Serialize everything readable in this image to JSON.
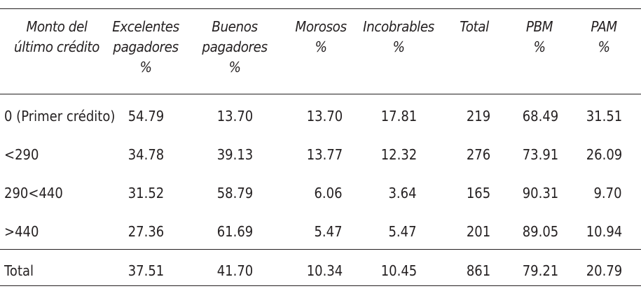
{
  "table": {
    "headers": [
      "Monto del\núltimo crédito",
      "Excelentes\npagadores\n%",
      "Buenos\npagadores\n%",
      "Morosos\n%",
      "Incobrables\n%",
      "Total",
      "PBM\n%",
      "PAM\n%"
    ],
    "rows": [
      {
        "label": "0 (Primer crédito)",
        "values": [
          "54.79",
          "13.70",
          "13.70",
          "17.81",
          "219",
          "68.49",
          "31.51"
        ]
      },
      {
        "label": "<290",
        "values": [
          "34.78",
          "39.13",
          "13.77",
          "12.32",
          "276",
          "73.91",
          "26.09"
        ]
      },
      {
        "label": "290<440",
        "values": [
          "31.52",
          "58.79",
          "6.06",
          "3.64",
          "165",
          "90.31",
          "9.70"
        ]
      },
      {
        "label": ">440",
        "values": [
          "27.36",
          "61.69",
          "5.47",
          "5.47",
          "201",
          "89.05",
          "10.94"
        ]
      }
    ],
    "total": {
      "label": "Total",
      "values": [
        "37.51",
        "41.70",
        "10.34",
        "10.45",
        "861",
        "79.21",
        "20.79"
      ]
    }
  }
}
